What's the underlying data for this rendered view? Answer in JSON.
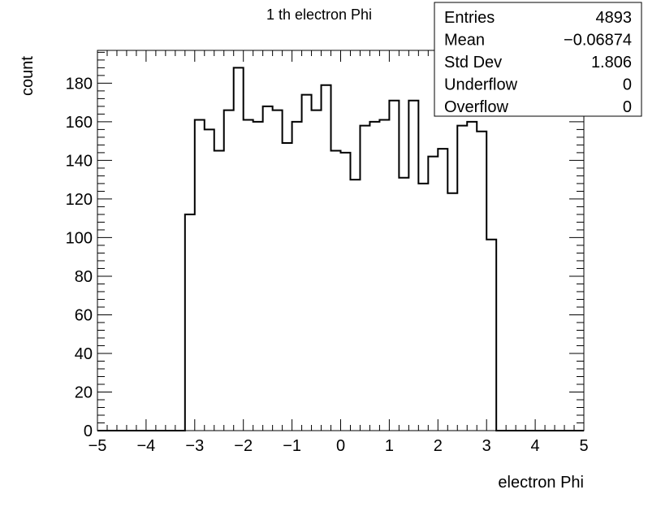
{
  "chart_data": {
    "type": "histogram",
    "title": "1 th electron Phi",
    "xlabel": "electron Phi",
    "ylabel": "count",
    "xlim": [
      -5,
      5
    ],
    "ylim": [
      0,
      197
    ],
    "x_ticks": [
      -5,
      -4,
      -3,
      -2,
      -1,
      0,
      1,
      2,
      3,
      4,
      5
    ],
    "x_tick_labels": [
      "−5",
      "−4",
      "−3",
      "−2",
      "−1",
      "0",
      "1",
      "2",
      "3",
      "4",
      "5"
    ],
    "y_ticks": [
      0,
      20,
      40,
      60,
      80,
      100,
      120,
      140,
      160,
      180
    ],
    "y_tick_labels": [
      "0",
      "20",
      "40",
      "60",
      "80",
      "100",
      "120",
      "140",
      "160",
      "180"
    ],
    "bin_edges_range": [
      -5,
      5
    ],
    "bin_count": 50,
    "values": [
      0,
      0,
      0,
      0,
      0,
      0,
      0,
      0,
      0,
      112,
      161,
      156,
      145,
      166,
      188,
      161,
      160,
      168,
      166,
      149,
      160,
      174,
      166,
      179,
      145,
      144,
      130,
      158,
      160,
      161,
      171,
      131,
      171,
      128,
      142,
      146,
      123,
      158,
      160,
      155,
      99,
      0,
      0,
      0,
      0,
      0,
      0,
      0,
      0,
      0
    ],
    "stats_box": {
      "rows": [
        {
          "label": "Entries",
          "value": "4893"
        },
        {
          "label": "Mean",
          "value": "−0.06874"
        },
        {
          "label": "Std Dev",
          "value": "1.806"
        },
        {
          "label": "Underflow",
          "value": "0"
        },
        {
          "label": "Overflow",
          "value": "0"
        }
      ]
    },
    "grid": false
  }
}
